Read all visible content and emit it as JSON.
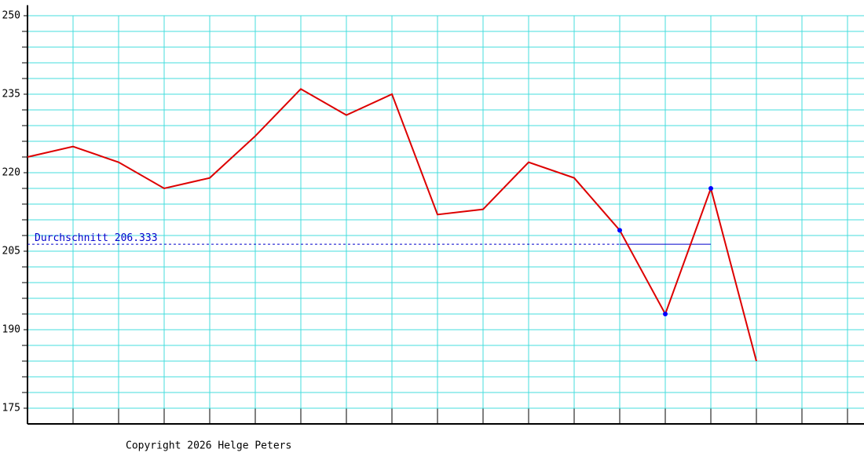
{
  "chart_data": {
    "type": "line",
    "categories": [
      null,
      null,
      null,
      null,
      null,
      null,
      null,
      null,
      null,
      null,
      null,
      null,
      null,
      null,
      null,
      null,
      null,
      null,
      null
    ],
    "series": [
      {
        "color": "#dd0000",
        "values": [
          223,
          225,
          222,
          217,
          219,
          227,
          236,
          231,
          235,
          212,
          213,
          222,
          219,
          209,
          193,
          217,
          184,
          null,
          null
        ]
      },
      {
        "color": "#0000ff",
        "values": [
          null,
          null,
          null,
          null,
          null,
          null,
          null,
          null,
          null,
          null,
          null,
          null,
          null,
          209,
          193,
          217,
          null,
          null,
          null
        ],
        "markers": true
      }
    ],
    "average_label": "Durchschnitt",
    "average": 206.333,
    "average_color": "#0000cc",
    "ylim": [
      172,
      252
    ],
    "yticks": [
      175,
      190,
      205,
      220,
      235,
      250
    ],
    "minor_yticks": [
      178,
      181,
      184,
      187,
      193,
      196,
      199,
      202,
      208,
      211,
      214,
      217,
      223,
      226,
      229,
      232,
      238,
      241,
      244,
      247
    ],
    "grid": true,
    "grid_color": "#44dddd",
    "footer": "Copyright 2026 Helge Peters"
  }
}
